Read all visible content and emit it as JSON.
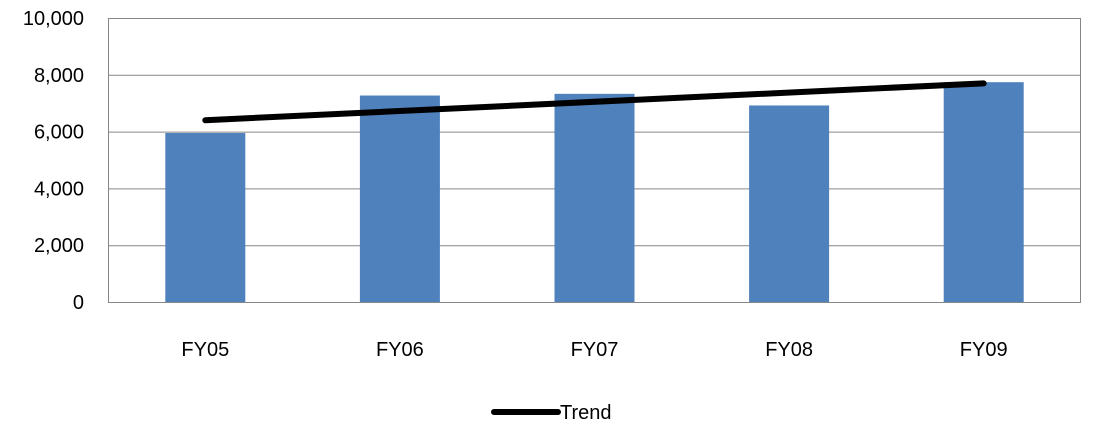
{
  "chart_data": {
    "type": "bar",
    "categories": [
      "FY05",
      "FY06",
      "FY07",
      "FY08",
      "FY09"
    ],
    "series": [
      {
        "values": [
          5950,
          7270,
          7330,
          6920,
          7740
        ],
        "color": "#4F81BD"
      }
    ],
    "trendline": {
      "name": "Trend",
      "start": 6400,
      "end": 7700,
      "color": "#000000"
    },
    "ylim": [
      0,
      10000
    ],
    "yticks": [
      0,
      2000,
      4000,
      6000,
      8000,
      10000
    ],
    "ytick_labels": [
      "0",
      "2,000",
      "4,000",
      "6,000",
      "8,000",
      "10,000"
    ],
    "grid": true,
    "legend_position": "bottom",
    "title": "",
    "xlabel": "",
    "ylabel": ""
  }
}
